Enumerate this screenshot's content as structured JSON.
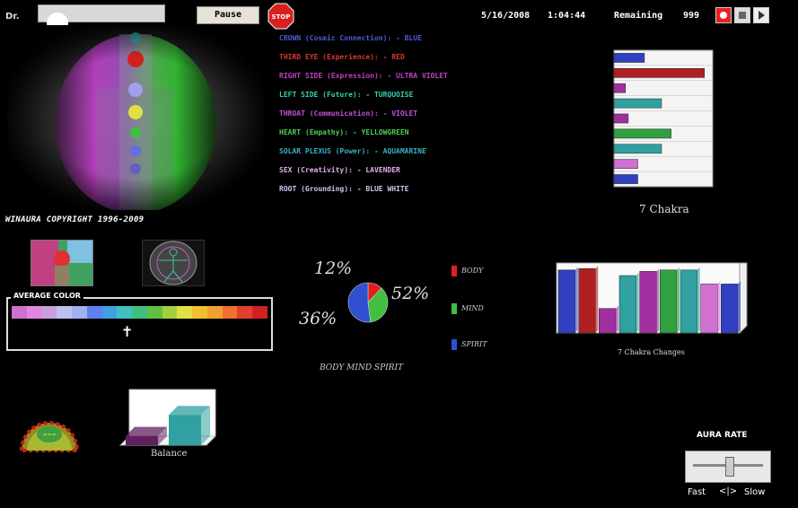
{
  "topbar": {
    "name_label": "Dr.",
    "pause_label": "Pause",
    "stop_label": "STOP",
    "date": "5/16/2008",
    "time": "1:04:44",
    "remaining_label": "Remaining",
    "remaining_value": "999"
  },
  "copyright": "WINAURA COPYRIGHT 1996-2009",
  "chakras": [
    {
      "text": "CROWN (Cosmic Connection): - BLUE",
      "color": "#4b5bd8"
    },
    {
      "text": "THIRD EYE (Experience): - RED",
      "color": "#d63a2e"
    },
    {
      "text": "RIGHT SIDE (Expression): - ULTRA VIOLET",
      "color": "#c040c0"
    },
    {
      "text": "LEFT SIDE (Future): - TURQUOISE",
      "color": "#39d0b0"
    },
    {
      "text": "THROAT (Communication): - VIOLET",
      "color": "#c050d8"
    },
    {
      "text": "HEART (Empathy): - YELLOWGREEN",
      "color": "#48d050"
    },
    {
      "text": "SOLAR PLEXUS (Power): - AQUAMARINE",
      "color": "#3ab0c8"
    },
    {
      "text": "SEX (Creativity): - LAVENDER",
      "color": "#e0b0e8"
    },
    {
      "text": "ROOT (Grounding): - BLUE WHITE",
      "color": "#c8c8f0"
    }
  ],
  "average_color": {
    "label": "AVERAGE COLOR",
    "colors": [
      "#d070d0",
      "#e088e0",
      "#c8a0e0",
      "#c0c0f0",
      "#a0b0f0",
      "#6080f0",
      "#40a0e0",
      "#40c0c0",
      "#40c080",
      "#60c040",
      "#a0d040",
      "#e0e040",
      "#f0c030",
      "#f0a030",
      "#f07030",
      "#e04030",
      "#d02020"
    ],
    "arrow": "✝"
  },
  "pie": {
    "title": "BODY MIND SPIRIT",
    "slices": [
      {
        "label": "BODY",
        "value": 12,
        "color": "#e02020"
      },
      {
        "label": "MIND",
        "value": 36,
        "color": "#40c040"
      },
      {
        "label": "SPIRIT",
        "value": 52,
        "color": "#3050d0"
      }
    ],
    "labels": {
      "body": "12%",
      "mind": "36%",
      "spirit": "52%"
    }
  },
  "chart_data": [
    {
      "type": "bar",
      "title": "7 Chakra",
      "orientation": "horizontal",
      "values": [
        32,
        95,
        12,
        50,
        15,
        60,
        50,
        25,
        25
      ],
      "colors": [
        "#3040c0",
        "#b02020",
        "#a030a0",
        "#30a0a0",
        "#a030a0",
        "#30a040",
        "#30a0a0",
        "#d070d0",
        "#3040c0"
      ],
      "xlim": [
        0,
        100
      ]
    },
    {
      "type": "bar",
      "title": "7 Chakra Changes",
      "values": [
        90,
        92,
        35,
        82,
        88,
        90,
        90,
        70,
        70
      ],
      "colors": [
        "#3040c0",
        "#b02020",
        "#a030a0",
        "#30a0a0",
        "#a030a0",
        "#30a040",
        "#30a0a0",
        "#d070d0",
        "#3040c0"
      ],
      "ylim": [
        0,
        100
      ]
    },
    {
      "type": "bar",
      "title": "Balance",
      "values": [
        20,
        65
      ],
      "colors": [
        "#602060",
        "#30a0a0"
      ],
      "ylim": [
        0,
        100
      ]
    }
  ],
  "aura_rate": {
    "label": "AURA RATE",
    "fast": "Fast",
    "slow": "Slow",
    "arrows": "<|>",
    "value": 0.5
  }
}
